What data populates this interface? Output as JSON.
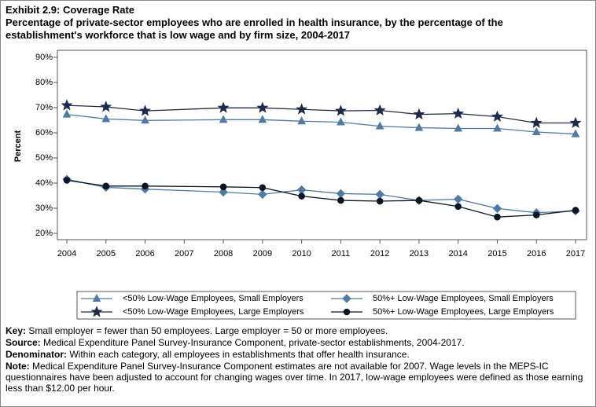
{
  "chart_data": {
    "type": "line",
    "title": "Exhibit 2.9: Coverage Rate",
    "subtitle": "Percentage of private-sector employees who are enrolled in health insurance, by the percentage of the establishment's workforce that is low wage and by firm size, 2004-2017",
    "ylabel": "Percent",
    "x": [
      2004,
      2005,
      2006,
      2008,
      2009,
      2010,
      2011,
      2012,
      2013,
      2014,
      2015,
      2016,
      2017
    ],
    "xlim": [
      2004,
      2017
    ],
    "xticks": [
      2004,
      2005,
      2006,
      2007,
      2008,
      2009,
      2010,
      2011,
      2012,
      2013,
      2014,
      2015,
      2016,
      2017
    ],
    "ylim": [
      17.5,
      92.8
    ],
    "yticks": [
      {
        "value": 20,
        "label": "20%"
      },
      {
        "value": 30,
        "label": "30%"
      },
      {
        "value": 40,
        "label": "40%"
      },
      {
        "value": 50,
        "label": "50%"
      },
      {
        "value": 60,
        "label": "60%"
      },
      {
        "value": 70,
        "label": "70%"
      },
      {
        "value": 80,
        "label": "80%"
      },
      {
        "value": 90,
        "label": "90%"
      }
    ],
    "series": [
      {
        "name": "<50% Low-Wage Employees, Small Employers",
        "color": "#4d7aa6",
        "marker": "triangle",
        "values": [
          67.3,
          65.5,
          64.9,
          65.2,
          65.2,
          64.6,
          64.2,
          62.6,
          62.0,
          61.7,
          61.7,
          60.3,
          59.5
        ]
      },
      {
        "name": "50%+ Low-Wage Employees, Small Employers",
        "color": "#4d7aa6",
        "marker": "diamond",
        "values": [
          41.5,
          38.3,
          37.6,
          36.4,
          35.5,
          37.3,
          35.8,
          35.5,
          33.1,
          33.6,
          29.9,
          28.2,
          28.9
        ]
      },
      {
        "name": "<50% Low-Wage Employees, Large Employers",
        "color": "#1c2b4d",
        "marker": "star",
        "values": [
          70.9,
          70.3,
          68.7,
          69.9,
          69.9,
          69.3,
          68.7,
          68.9,
          67.3,
          67.6,
          66.4,
          63.9,
          63.9
        ]
      },
      {
        "name": "50%+ Low-Wage Employees, Large Employers",
        "color": "#0b1626",
        "marker": "circle",
        "values": [
          41.1,
          38.8,
          38.8,
          38.5,
          38.2,
          34.8,
          33.1,
          32.8,
          33.1,
          30.7,
          26.5,
          27.3,
          29.2
        ]
      }
    ],
    "notes": [
      {
        "label": "Key:",
        "text": "Small employer = fewer than 50 employees. Large employer = 50 or more employees."
      },
      {
        "label": "Source:",
        "text": "Medical Expenditure Panel Survey-Insurance Component, private-sector establishments, 2004-2017."
      },
      {
        "label": "Denominator:",
        "text": "Within each category, all employees in establishments that offer health insurance."
      },
      {
        "label": "Note:",
        "text": "Medical Expenditure Panel Survey-Insurance Component estimates are not available for 2007. Wage levels in the MEPS-IC questionnaires have been adjusted to account for changing wages over time. In 2017, low-wage employees were defined as those earning less than $12.00 per hour."
      }
    ]
  }
}
